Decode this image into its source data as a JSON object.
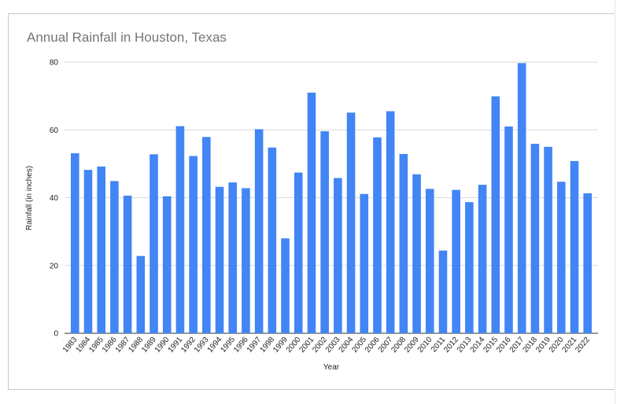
{
  "chart_data": {
    "type": "bar",
    "title": "Annual Rainfall in Houston, Texas",
    "xlabel": "Year",
    "ylabel": "Rainfall (in inches)",
    "ylim": [
      0,
      80
    ],
    "yticks": [
      "0",
      "20",
      "40",
      "60",
      "80"
    ],
    "grid": true,
    "legend": "none",
    "bar_color": "#4285f4",
    "categories": [
      "1983",
      "1984",
      "1985",
      "1986",
      "1987",
      "1988",
      "1989",
      "1990",
      "1991",
      "1992",
      "1993",
      "1994",
      "1995",
      "1996",
      "1997",
      "1998",
      "1999",
      "2000",
      "2001",
      "2002",
      "2003",
      "2004",
      "2005",
      "2006",
      "2007",
      "2008",
      "2009",
      "2010",
      "2011",
      "2012",
      "2013",
      "2014",
      "2015",
      "2016",
      "2017",
      "2018",
      "2019",
      "2020",
      "2021",
      "2022"
    ],
    "values": [
      53.1,
      48.2,
      49.2,
      44.9,
      40.6,
      22.8,
      52.8,
      40.4,
      61.1,
      52.3,
      57.9,
      43.2,
      44.5,
      42.8,
      60.2,
      54.8,
      28.0,
      47.4,
      71.0,
      59.6,
      45.8,
      65.1,
      41.1,
      57.8,
      65.5,
      52.9,
      46.9,
      42.6,
      24.4,
      42.3,
      38.7,
      43.8,
      69.9,
      61.0,
      79.7,
      55.9,
      55.0,
      44.7,
      50.8,
      41.3
    ]
  }
}
